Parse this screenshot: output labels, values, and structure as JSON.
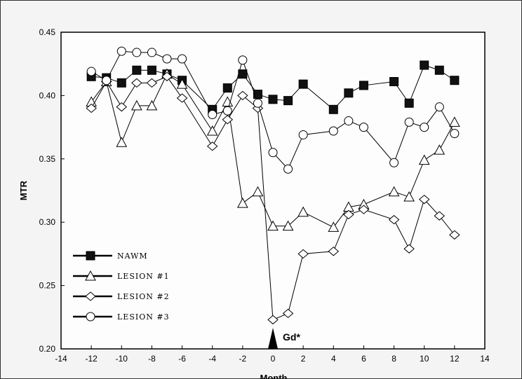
{
  "chart_data": {
    "type": "line",
    "xlabel": "Month",
    "ylabel": "MTR",
    "xlim": [
      -14,
      14
    ],
    "ylim": [
      0.2,
      0.45
    ],
    "xticks": [
      -14,
      -12,
      -10,
      -8,
      -6,
      -4,
      -2,
      0,
      2,
      4,
      6,
      8,
      10,
      12,
      14
    ],
    "yticks": [
      "0.20",
      "0.25",
      "0.30",
      "0.35",
      "0.40",
      "0.45"
    ],
    "grid": false,
    "legend_position": "bottom-left",
    "annotation": {
      "label": "Gd*",
      "x": 0
    },
    "series": [
      {
        "name": "NAWM",
        "marker": "square-filled",
        "x": [
          -12,
          -11,
          -10,
          -9,
          -8,
          -7,
          -6,
          -4,
          -3,
          -2,
          -1,
          0,
          1,
          2,
          4,
          5,
          6,
          8,
          9,
          10,
          11,
          12
        ],
        "values": [
          0.415,
          0.414,
          0.41,
          0.42,
          0.42,
          0.417,
          0.412,
          0.389,
          0.406,
          0.417,
          0.401,
          0.397,
          0.396,
          0.409,
          0.389,
          0.402,
          0.408,
          0.411,
          0.394,
          0.424,
          0.42,
          0.412
        ]
      },
      {
        "name": "LESION #1",
        "marker": "triangle-open",
        "x": [
          -12,
          -11,
          -10,
          -9,
          -8,
          -7,
          -6,
          -4,
          -3,
          -2,
          -1,
          0,
          1,
          2,
          4,
          5,
          6,
          8,
          9,
          10,
          11,
          12
        ],
        "values": [
          0.395,
          0.411,
          0.363,
          0.392,
          0.392,
          0.417,
          0.409,
          0.372,
          0.395,
          0.315,
          0.324,
          0.297,
          0.297,
          0.308,
          0.296,
          0.312,
          0.314,
          0.324,
          0.32,
          0.349,
          0.357,
          0.379
        ]
      },
      {
        "name": "LESION #2",
        "marker": "diamond-open",
        "x": [
          -12,
          -11,
          -10,
          -9,
          -8,
          -7,
          -6,
          -4,
          -3,
          -2,
          -1,
          0,
          1,
          2,
          4,
          5,
          6,
          8,
          9,
          10,
          11,
          12
        ],
        "values": [
          0.39,
          0.411,
          0.391,
          0.41,
          0.41,
          0.415,
          0.398,
          0.36,
          0.381,
          0.4,
          0.39,
          0.223,
          0.228,
          0.275,
          0.277,
          0.306,
          0.31,
          0.302,
          0.279,
          0.318,
          0.305,
          0.29
        ]
      },
      {
        "name": "LESION #3",
        "marker": "circle-open",
        "x": [
          -12,
          -11,
          -10,
          -9,
          -8,
          -7,
          -6,
          -4,
          -3,
          -2,
          -1,
          0,
          1,
          2,
          4,
          5,
          6,
          8,
          9,
          10,
          11,
          12
        ],
        "values": [
          0.419,
          0.412,
          0.435,
          0.434,
          0.434,
          0.429,
          0.429,
          0.385,
          0.388,
          0.428,
          0.394,
          0.355,
          0.342,
          0.369,
          0.372,
          0.38,
          0.375,
          0.347,
          0.379,
          0.375,
          0.391,
          0.37
        ]
      }
    ]
  }
}
